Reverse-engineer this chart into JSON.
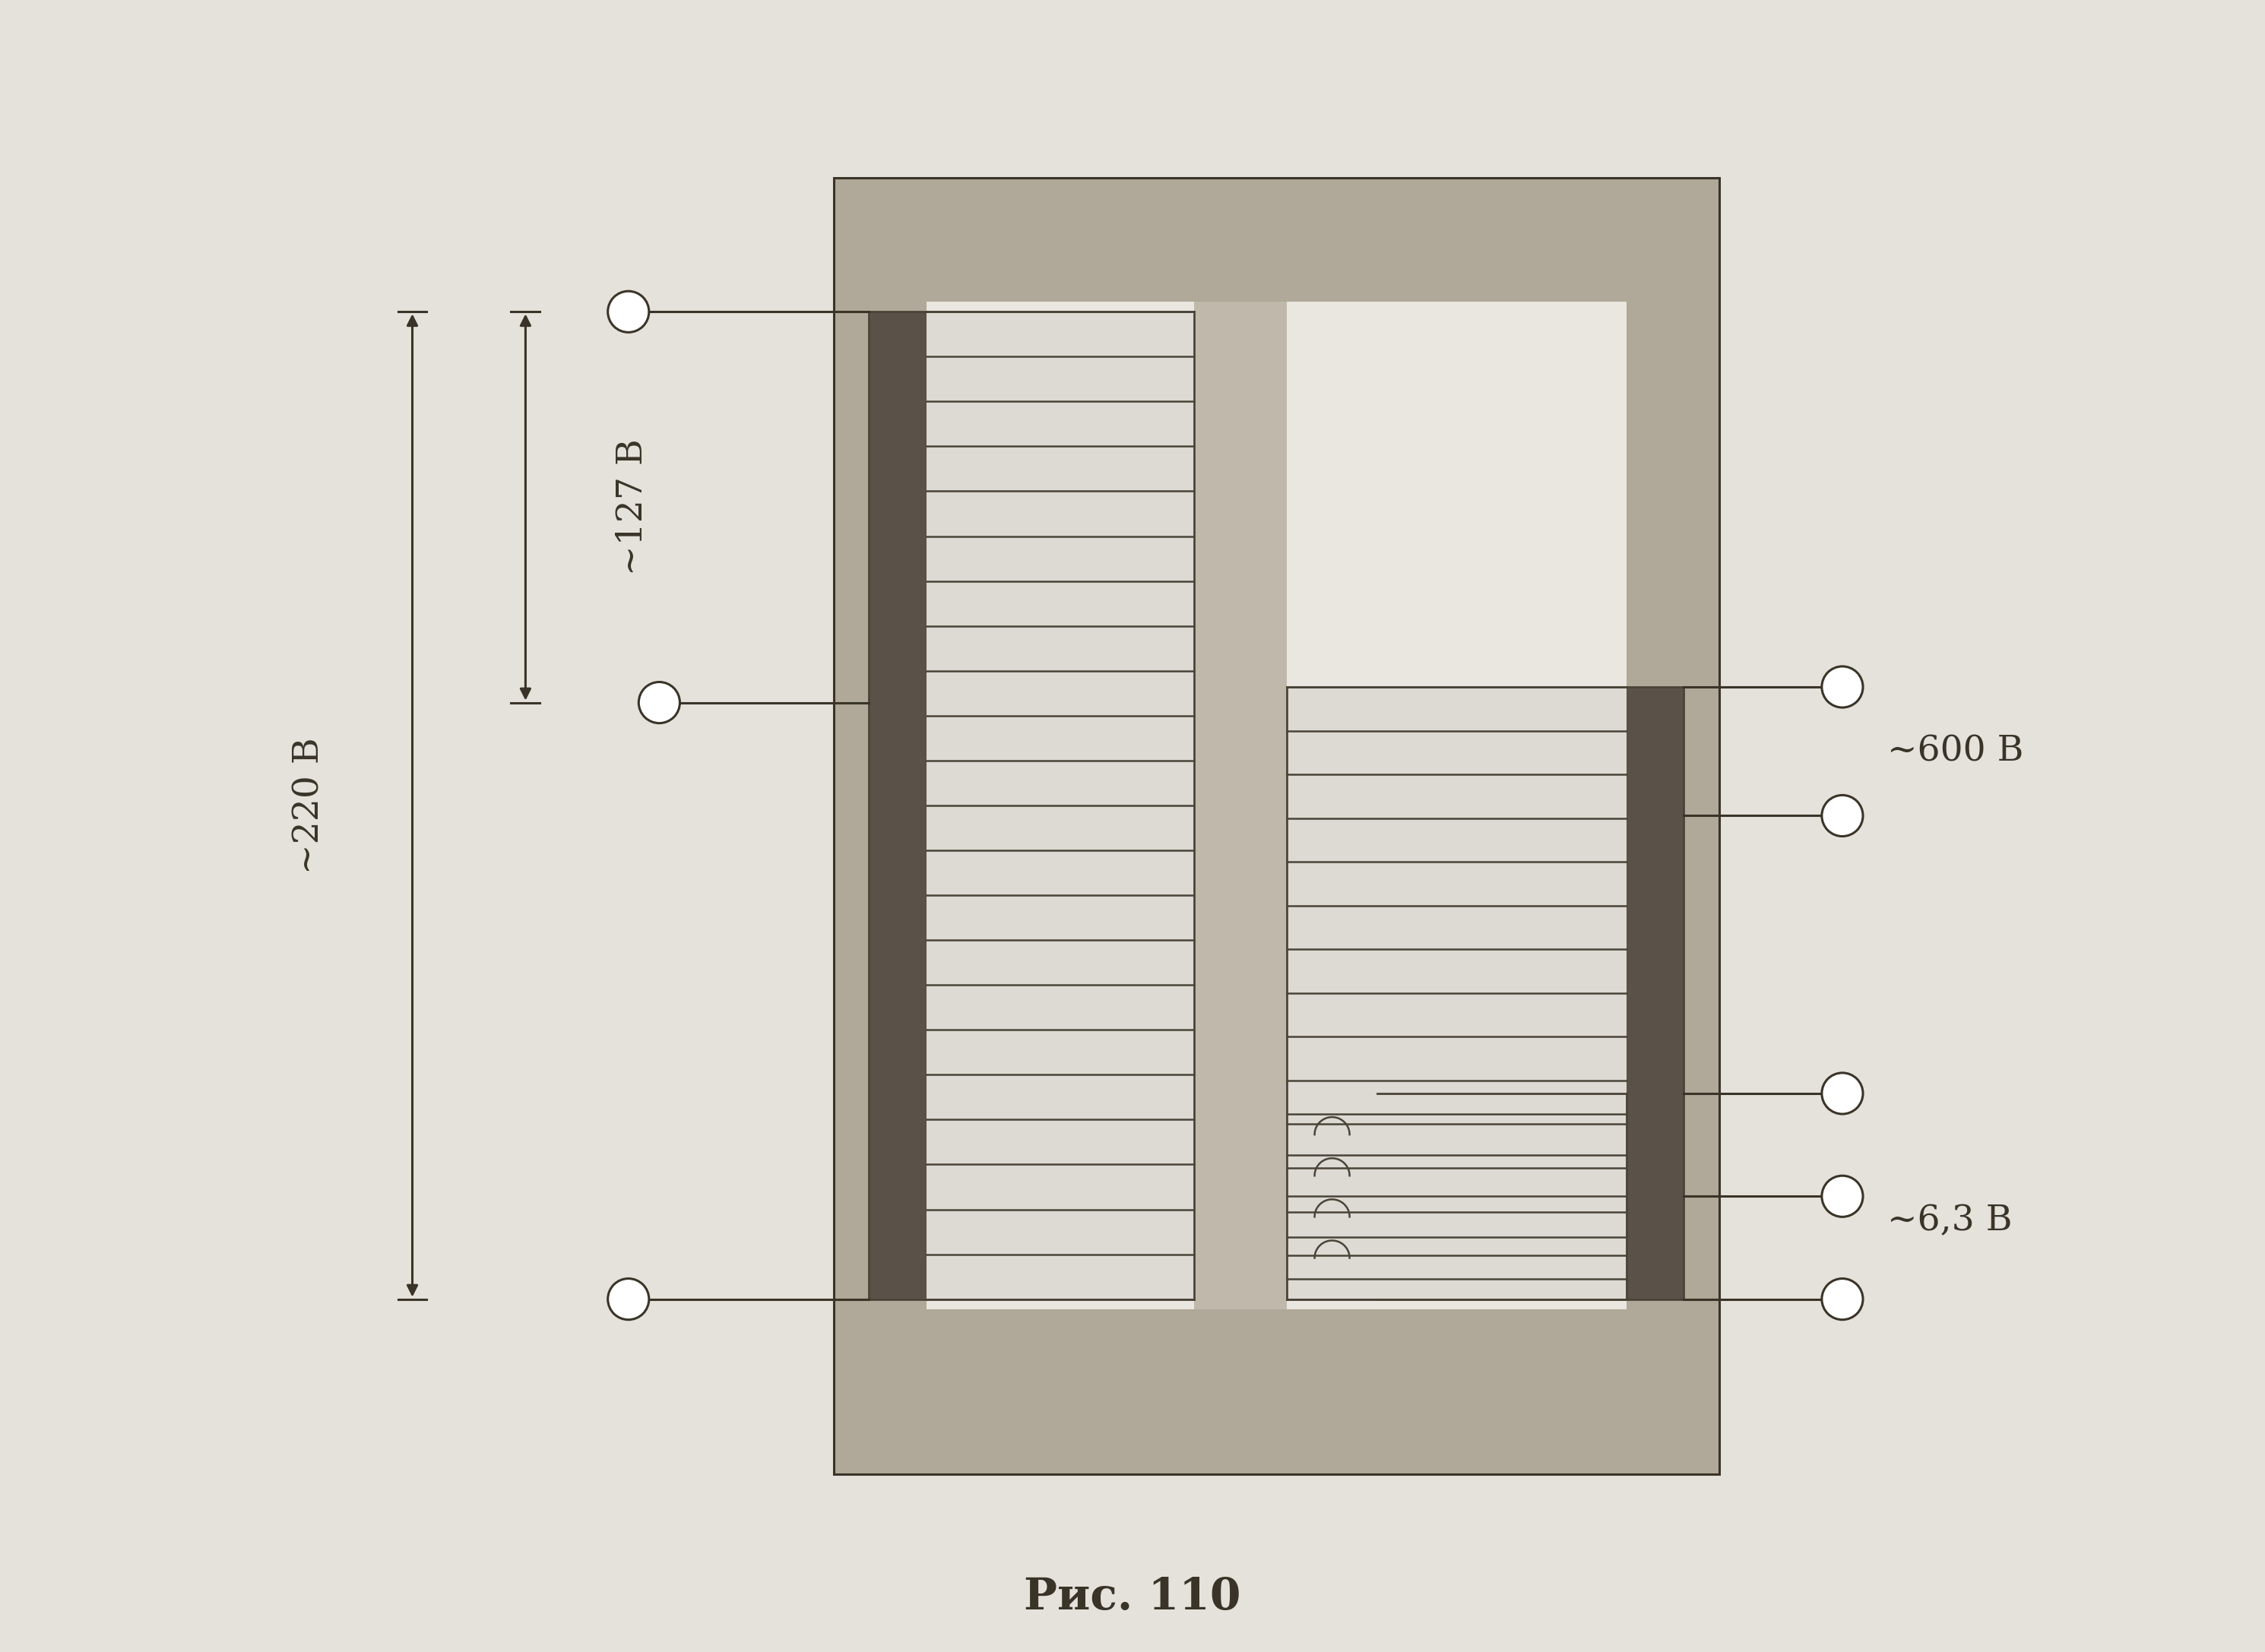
{
  "bg_color": "#e5e1db",
  "line_color": "#3a3428",
  "coil_color": "#4a4438",
  "core_fill_outer": "#b0a898",
  "core_fill_inner": "#d8d0c4",
  "core_fill_center": "#c0b8aa",
  "title": "Рис. 110",
  "title_fontsize": 42,
  "label_220": "~220 В",
  "label_127": "~127 В",
  "label_600": "~600 В",
  "label_63": "~6,3 В",
  "label_fontsize": 34,
  "figsize": [
    29.8,
    21.74
  ]
}
